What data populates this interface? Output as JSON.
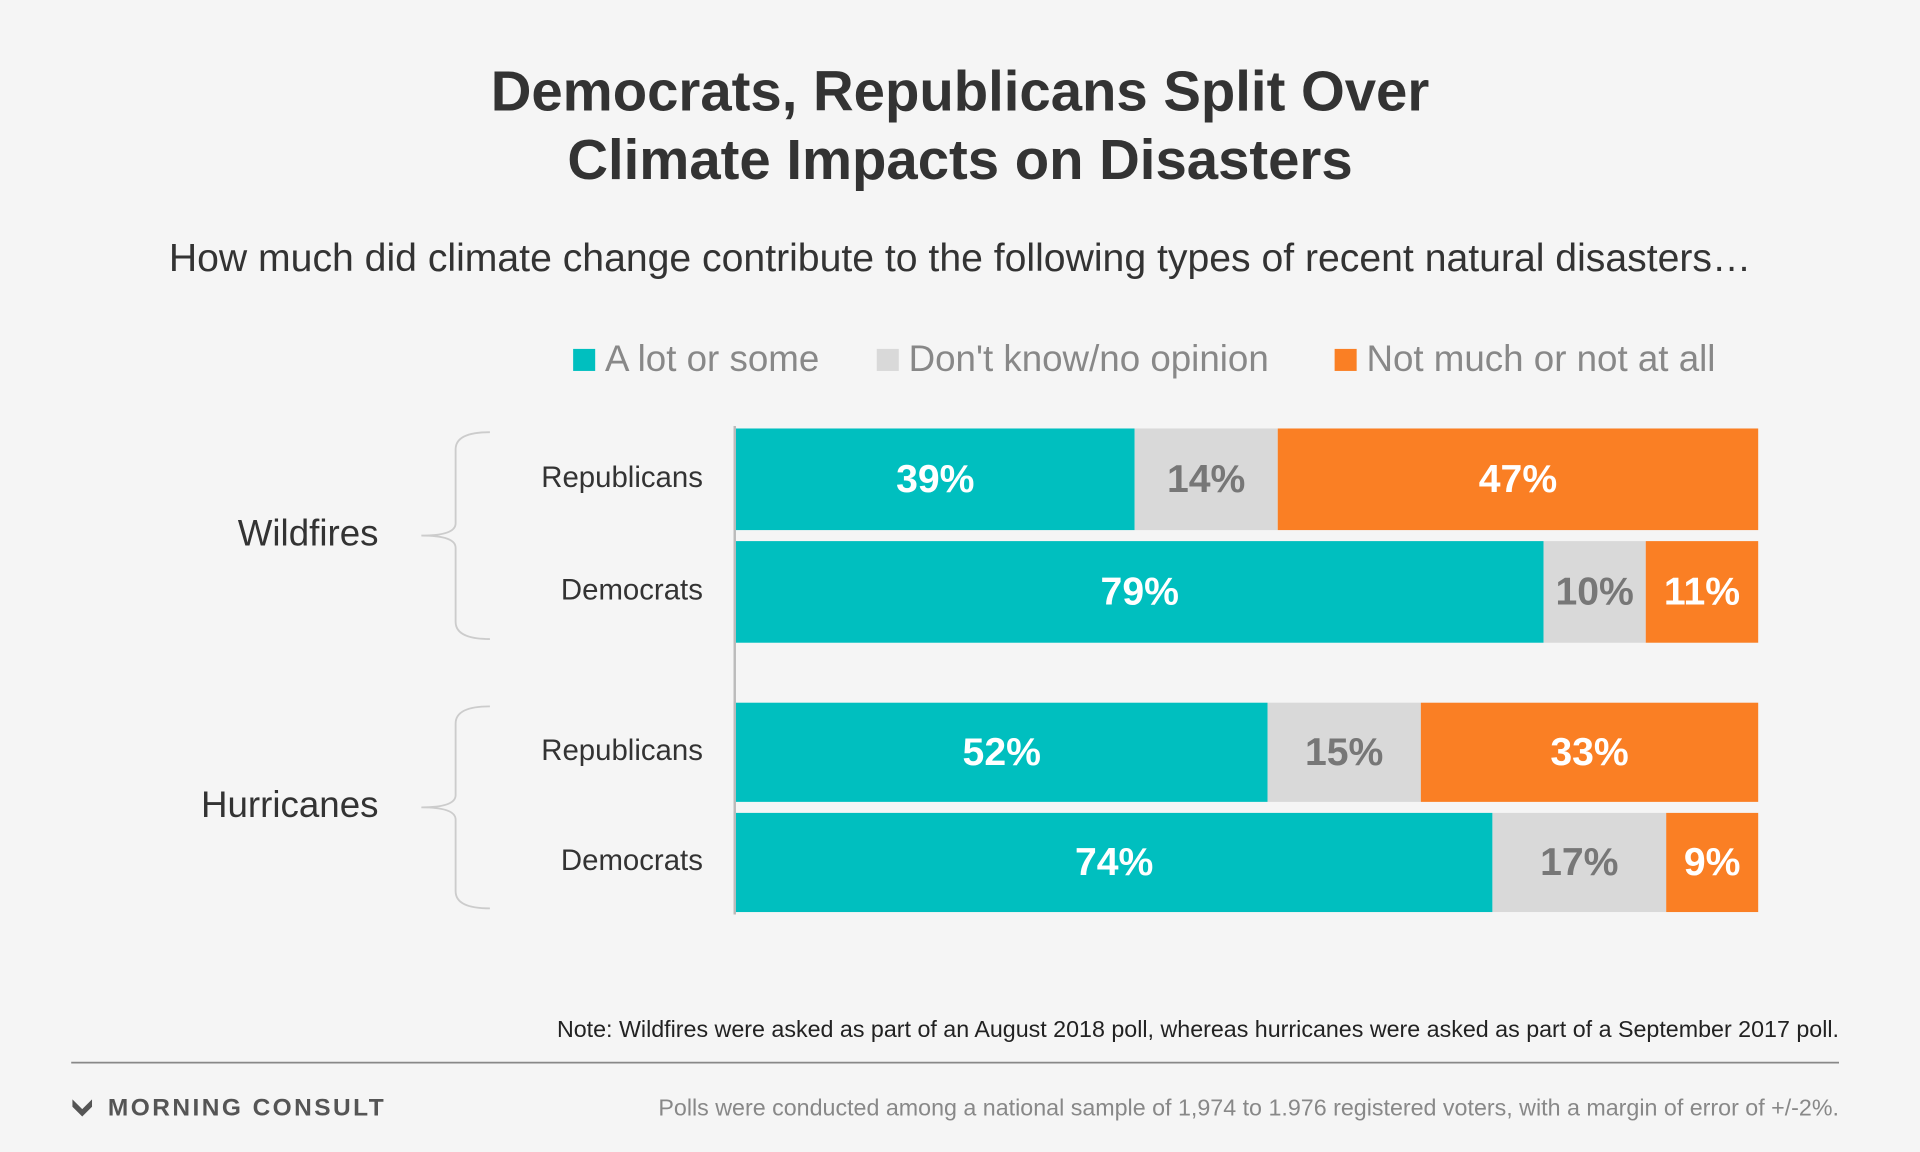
{
  "chart_data": {
    "type": "bar",
    "orientation": "horizontal",
    "stacked": true,
    "title": [
      "Democrats, Republicans Split Over",
      "Climate Impacts on Disasters"
    ],
    "subtitle": "How much did climate change contribute to the following types of recent natural disasters…",
    "groups": [
      "Wildfires",
      "Hurricanes"
    ],
    "categories": [
      "Republicans",
      "Democrats",
      "Republicans",
      "Democrats"
    ],
    "xlim": [
      0,
      100
    ],
    "series": [
      {
        "name": "A lot or some",
        "color": "#00bfbf",
        "values": [
          39,
          79,
          52,
          74
        ],
        "value_labels": [
          "39%",
          "79%",
          "52%",
          "74%"
        ]
      },
      {
        "name": "Don't know/no opinion",
        "color": "#d9d9d9",
        "values": [
          14,
          10,
          15,
          17
        ],
        "value_labels": [
          "14%",
          "10%",
          "15%",
          "17%"
        ]
      },
      {
        "name": "Not much or not at all",
        "color": "#fa7f24",
        "values": [
          47,
          11,
          33,
          9
        ],
        "value_labels": [
          "47%",
          "11%",
          "33%",
          "9%"
        ]
      }
    ],
    "note": "Note: Wildfires were asked as part of an August 2018 poll, whereas hurricanes were asked as part of a September 2017 poll.",
    "source": "Polls were conducted among a national sample of 1,974 to 1.976 registered voters, with a margin of error of +/-2%.",
    "logo": "MORNING CONSULT"
  }
}
